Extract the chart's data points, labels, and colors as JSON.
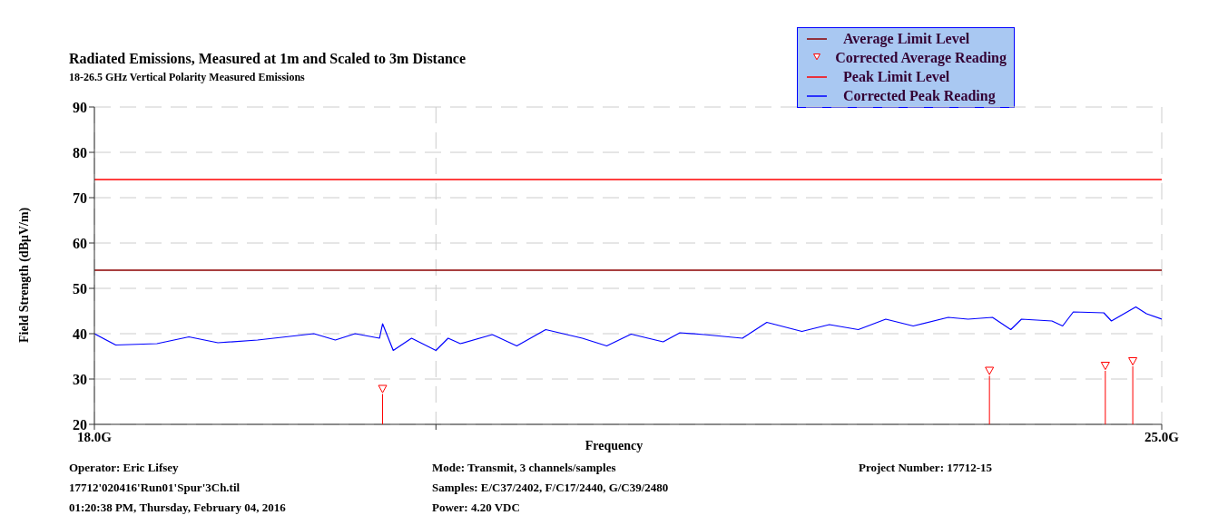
{
  "chart_data": {
    "type": "line",
    "title": "Radiated Emissions, Measured at 1m and Scaled to 3m Distance",
    "subtitle": "18-26.5 GHz Vertical Polarity Measured Emissions",
    "xlabel": "Frequency",
    "ylabel": "Field Strength (dBμV/m)",
    "xlim": [
      18,
      25
    ],
    "xticks": [
      {
        "value": 18,
        "label": "18.0G"
      },
      {
        "value": 20.24,
        "label": null
      },
      {
        "value": 25,
        "label": "25.0G"
      }
    ],
    "ylim": [
      20,
      90
    ],
    "yticks": [
      20,
      30,
      40,
      50,
      60,
      70,
      80,
      90
    ],
    "grid": true,
    "legend": "top right",
    "series": [
      {
        "name": "Average Limit Level",
        "type": "line",
        "color": "#8b0000",
        "x": [
          18,
          25
        ],
        "values": [
          54,
          54
        ]
      },
      {
        "name": "Corrected Average Reading",
        "type": "lollipop",
        "marker": "triangle",
        "color": "#ff0000",
        "x": [
          19.89,
          23.87,
          24.63,
          24.81
        ],
        "values": [
          27.7,
          31.7,
          32.8,
          33.8
        ]
      },
      {
        "name": "Peak Limit Level",
        "type": "line",
        "color": "#ff0000",
        "x": [
          18,
          25
        ],
        "values": [
          74,
          74
        ]
      },
      {
        "name": "Corrected Peak Reading",
        "type": "line",
        "color": "#0000ff",
        "x": [
          18,
          18.14,
          18.41,
          18.62,
          18.81,
          19.07,
          19.44,
          19.58,
          19.71,
          19.87,
          19.89,
          19.96,
          20.08,
          20.24,
          20.32,
          20.4,
          20.61,
          20.77,
          20.96,
          21.2,
          21.36,
          21.52,
          21.73,
          21.84,
          22,
          22.25,
          22.41,
          22.64,
          22.82,
          23.01,
          23.19,
          23.37,
          23.6,
          23.73,
          23.89,
          24.01,
          24.08,
          24.28,
          24.35,
          24.42,
          24.62,
          24.67,
          24.83,
          24.9,
          25
        ],
        "values": [
          40,
          37.5,
          37.8,
          39.3,
          38,
          38.6,
          40,
          38.6,
          40,
          39,
          42.2,
          36.3,
          39,
          36.3,
          39,
          37.8,
          39.8,
          37.3,
          40.9,
          39,
          37.3,
          39.9,
          38.2,
          40.2,
          39.8,
          39,
          42.5,
          40.5,
          42,
          40.9,
          43.2,
          41.7,
          43.6,
          43.2,
          43.6,
          40.9,
          43.2,
          42.8,
          41.7,
          44.8,
          44.6,
          42.8,
          45.9,
          44.4,
          43.2
        ]
      }
    ],
    "annotations": [
      "Operator: Eric Lifsey",
      "17712'020416'Run01'Spur'3Ch.til",
      "01:20:38 PM, Thursday, February 04, 2016",
      "Mode: Transmit, 3 channels/samples",
      "Samples: E/C37/2402, F/C17/2440, G/C39/2480",
      "Power: 4.20 VDC",
      "Project Number: 17712-15"
    ]
  }
}
